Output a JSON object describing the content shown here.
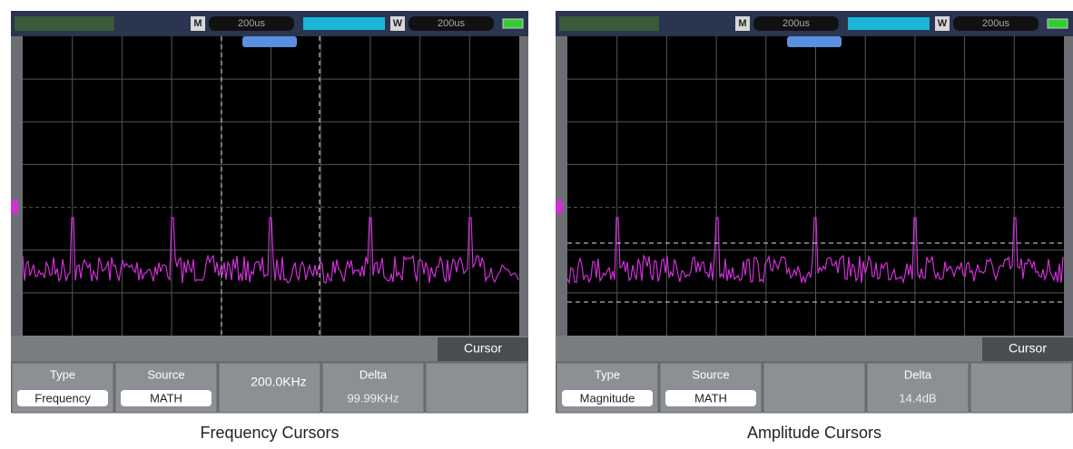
{
  "panels": [
    {
      "main_label": "M",
      "timebase_main": "200us",
      "window_label": "W",
      "timebase_window": "200us",
      "menu_tab": "Cursor",
      "softkeys": [
        {
          "label": "Type",
          "value": "Frequency"
        },
        {
          "label": "Source",
          "value": "MATH"
        },
        {
          "value": "200.0KHz"
        },
        {
          "label": "Delta",
          "value": "99.99KHz"
        }
      ],
      "caption": "Frequency Cursors"
    },
    {
      "main_label": "M",
      "timebase_main": "200us",
      "window_label": "W",
      "timebase_window": "200us",
      "menu_tab": "Cursor",
      "softkeys": [
        {
          "label": "Type",
          "value": "Magnitude"
        },
        {
          "label": "Source",
          "value": "MATH"
        },
        {
          "label": "Delta",
          "value": "14.4dB"
        }
      ],
      "caption": "Amplitude Cursors"
    }
  ]
}
